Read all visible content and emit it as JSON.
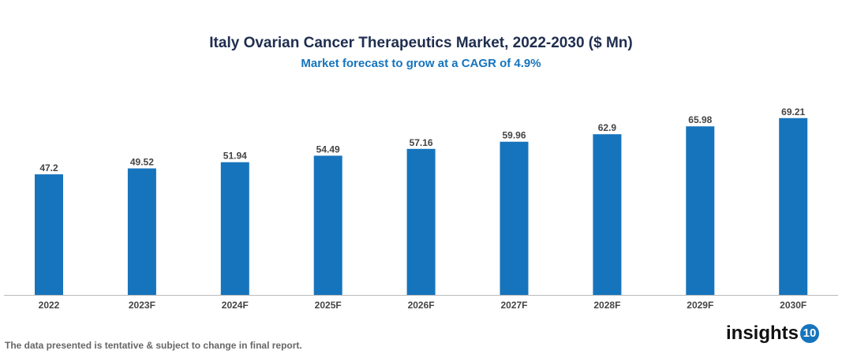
{
  "chart_data": {
    "type": "bar",
    "title": "Italy Ovarian Cancer Therapeutics Market, 2022-2030 ($ Mn)",
    "subtitle": "Market forecast to grow at a CAGR of 4.9%",
    "categories": [
      "2022",
      "2023F",
      "2024F",
      "2025F",
      "2026F",
      "2027F",
      "2028F",
      "2029F",
      "2030F"
    ],
    "values": [
      47.2,
      49.52,
      51.94,
      54.49,
      57.16,
      59.96,
      62.9,
      65.98,
      69.21
    ],
    "value_labels": [
      "47.2",
      "49.52",
      "51.94",
      "54.49",
      "57.16",
      "59.96",
      "62.9",
      "65.98",
      "69.21"
    ],
    "xlabel": "",
    "ylabel": "",
    "ylim": [
      0,
      75
    ],
    "grid": false,
    "bar_color": "#1674bd"
  },
  "footer": {
    "note": "The data presented is tentative & subject to change in final report.",
    "logo_text": "insights",
    "logo_badge": "10"
  }
}
